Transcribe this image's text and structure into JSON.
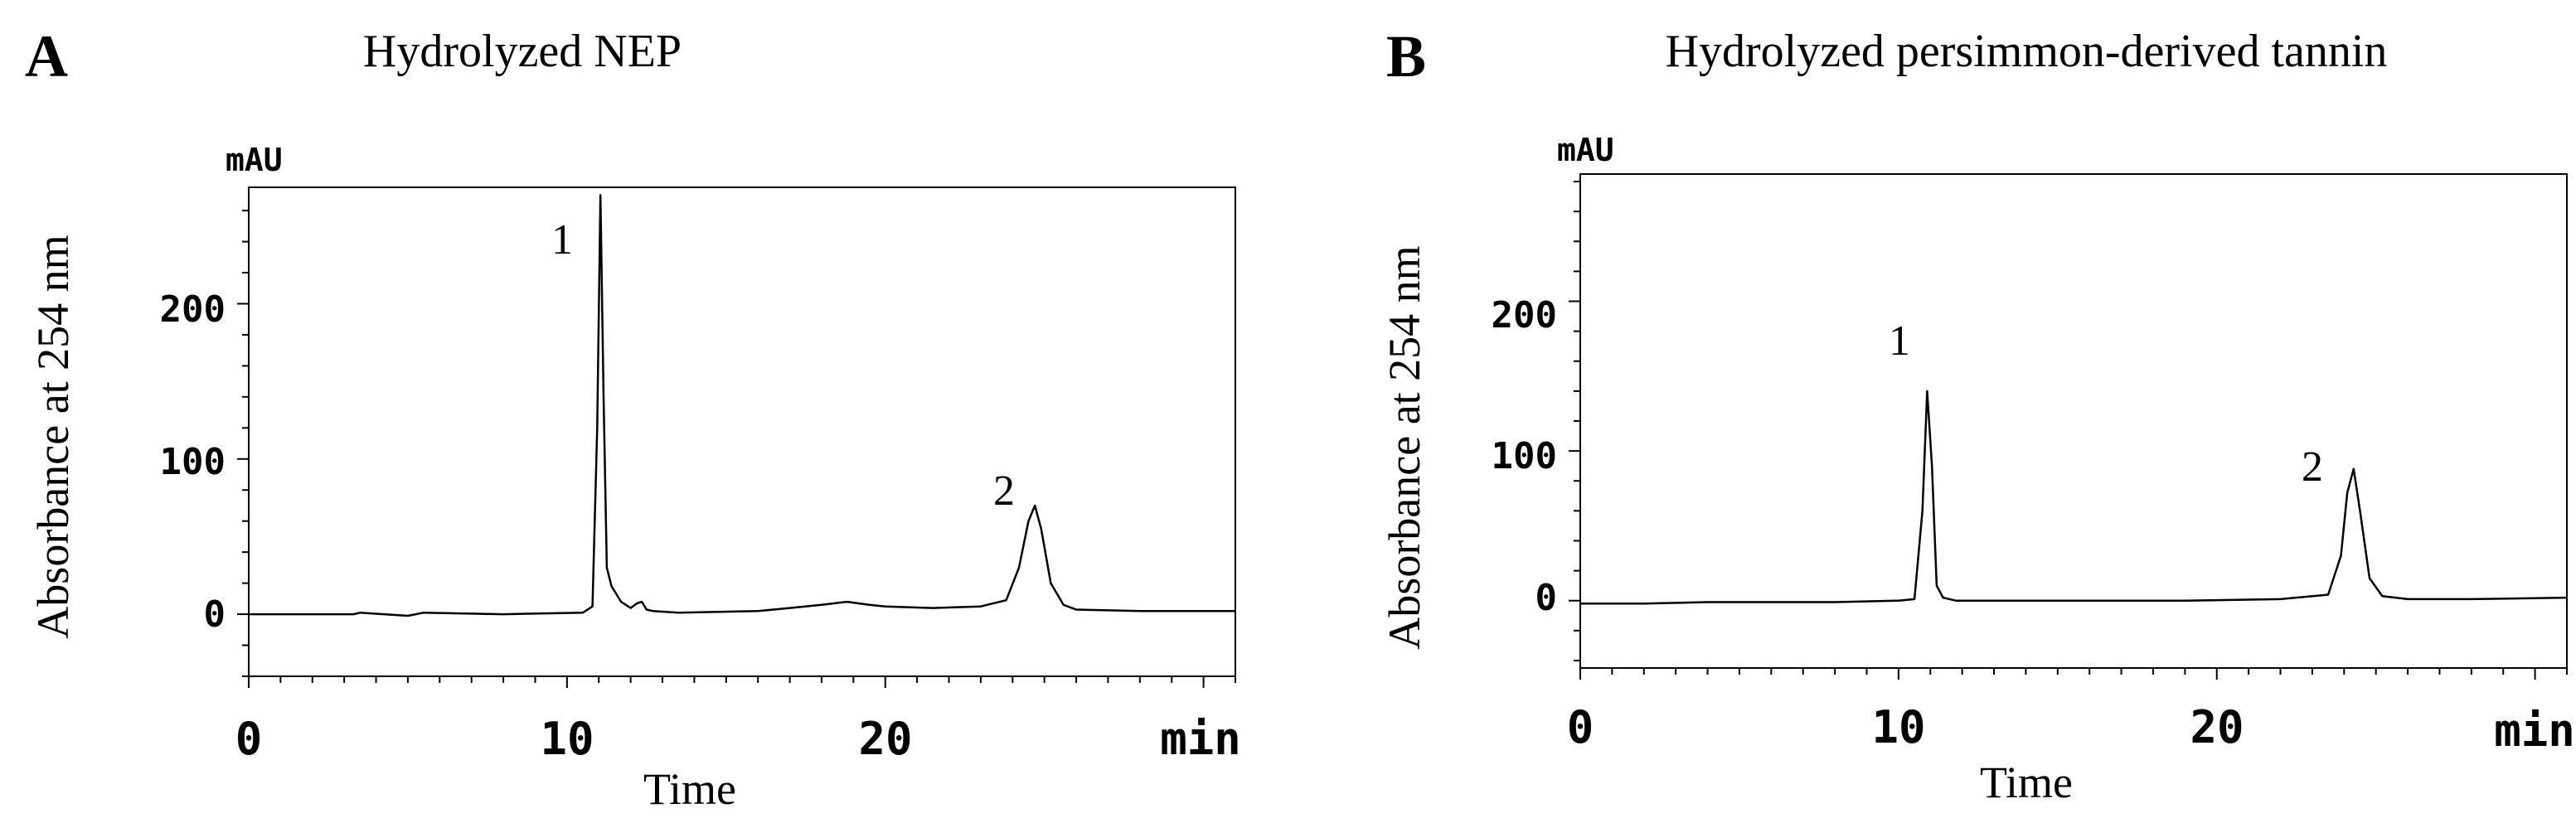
{
  "chart_data": [
    {
      "type": "line",
      "panel_letter": "A",
      "title": "Hydrolyzed NEP",
      "xlabel": "Time",
      "ylabel": "Absorbance at 254 nm",
      "x_unit": "min",
      "y_unit": "mAU",
      "xlim": [
        0,
        31
      ],
      "ylim": [
        -40,
        275
      ],
      "x_ticks": [
        0,
        10,
        20
      ],
      "y_ticks": [
        0,
        100,
        200
      ],
      "series": [
        {
          "name": "Hydrolyzed NEP",
          "x": [
            0,
            2,
            3.3,
            3.5,
            5,
            5.5,
            8,
            10.5,
            10.8,
            10.95,
            11.05,
            11.15,
            11.25,
            11.4,
            11.7,
            12.0,
            12.2,
            12.35,
            12.5,
            12.7,
            13.5,
            16,
            17,
            18,
            18.8,
            19.5,
            20,
            21.5,
            23,
            23.8,
            24.2,
            24.5,
            24.7,
            24.9,
            25.2,
            25.6,
            26,
            28,
            31
          ],
          "values": [
            0,
            0,
            0,
            1,
            -1,
            1,
            0,
            1,
            5,
            120,
            270,
            140,
            30,
            18,
            8,
            4,
            7,
            8,
            3,
            2,
            1,
            2,
            4,
            6,
            8,
            6,
            5,
            4,
            5,
            9,
            30,
            60,
            70,
            55,
            20,
            6,
            3,
            2,
            2
          ]
        }
      ],
      "annotations": [
        {
          "label": "1",
          "x": 10.95,
          "y": 270
        },
        {
          "label": "2",
          "x": 24.7,
          "y": 70
        }
      ]
    },
    {
      "type": "line",
      "panel_letter": "B",
      "title": "Hydrolyzed persimmon-derived tannin",
      "xlabel": "Time",
      "ylabel": "Absorbance at 254 nm",
      "x_unit": "min",
      "y_unit": "mAU",
      "xlim": [
        0,
        31
      ],
      "ylim": [
        -45,
        285
      ],
      "x_ticks": [
        0,
        10,
        20
      ],
      "y_ticks": [
        0,
        100,
        200
      ],
      "series": [
        {
          "name": "Hydrolyzed persimmon-derived tannin",
          "x": [
            0,
            2,
            4,
            6,
            8,
            10,
            10.5,
            10.75,
            10.9,
            11.05,
            11.2,
            11.4,
            11.8,
            13,
            16,
            19,
            22,
            23.5,
            23.9,
            24.1,
            24.3,
            24.5,
            24.8,
            25.2,
            26,
            28,
            31
          ],
          "values": [
            -2,
            -2,
            -1,
            -1,
            -1,
            0,
            1,
            60,
            140,
            90,
            10,
            2,
            0,
            0,
            0,
            0,
            1,
            4,
            30,
            72,
            88,
            60,
            15,
            3,
            1,
            1,
            2
          ]
        }
      ],
      "annotations": [
        {
          "label": "1",
          "x": 10.9,
          "y": 140
        },
        {
          "label": "2",
          "x": 24.3,
          "y": 88
        }
      ]
    }
  ]
}
